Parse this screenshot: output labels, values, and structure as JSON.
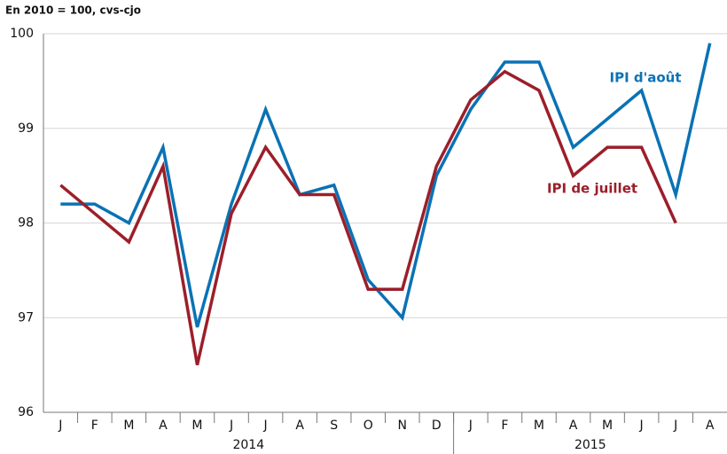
{
  "chart_data": {
    "type": "line",
    "subtitle": "En 2010 = 100, cvs-cjo",
    "categories": [
      "J",
      "F",
      "M",
      "A",
      "M",
      "J",
      "J",
      "A",
      "S",
      "O",
      "N",
      "D",
      "J",
      "F",
      "M",
      "A",
      "M",
      "J",
      "J",
      "A"
    ],
    "year_groups": [
      {
        "label": "2014",
        "count": 12
      },
      {
        "label": "2015",
        "count": 8
      }
    ],
    "series": [
      {
        "name": "IPI d'août",
        "color": "#0a72b5",
        "values": [
          98.2,
          98.2,
          98.0,
          98.8,
          96.9,
          98.2,
          99.2,
          98.3,
          98.4,
          97.4,
          97.0,
          98.5,
          99.2,
          99.7,
          99.7,
          98.8,
          99.1,
          99.4,
          98.3,
          99.9
        ]
      },
      {
        "name": "IPI de juillet",
        "color": "#9b1f2a",
        "values": [
          98.4,
          98.1,
          97.8,
          98.6,
          96.5,
          98.1,
          98.8,
          98.3,
          98.3,
          97.3,
          97.3,
          98.6,
          99.3,
          99.6,
          99.4,
          98.5,
          98.8,
          98.8,
          98.0,
          null
        ]
      }
    ],
    "ylim": [
      96,
      100
    ],
    "yticks": [
      96,
      97,
      98,
      99,
      100
    ],
    "grid": true
  }
}
